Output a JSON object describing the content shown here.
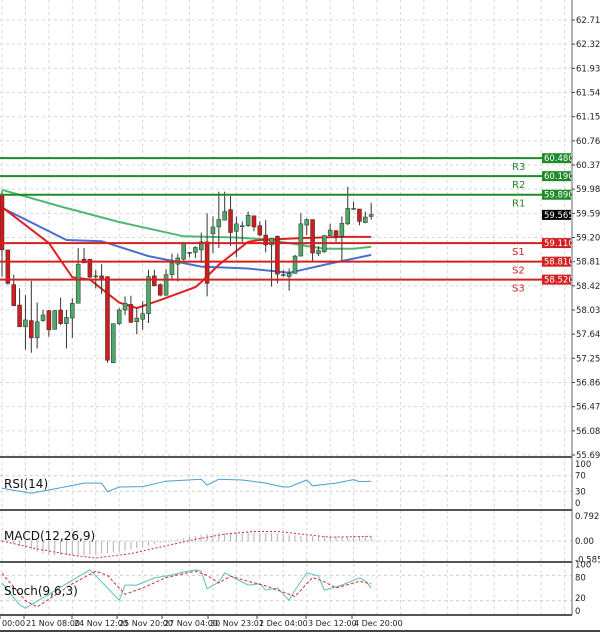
{
  "chart_data": [
    {
      "type": "candlestick",
      "panel": "price",
      "y_ticks": [
        "62.710",
        "62.320",
        "61.930",
        "61.540",
        "61.150",
        "60.760",
        "60.370",
        "59.980",
        "59.590",
        "59.200",
        "58.810",
        "58.420",
        "58.030",
        "57.640",
        "57.250",
        "56.860",
        "56.470",
        "56.080",
        "55.690"
      ],
      "ylim": [
        55.69,
        62.71
      ],
      "x_ticks": [
        "00:00",
        "21 Nov 08:00",
        "24 Nov 12:00",
        "25 Nov 20:00",
        "27 Nov 04:00",
        "30 Nov 23:01",
        "2 Dec 04:00",
        "3 Dec 12:00",
        "4 Dec 20:00"
      ],
      "grid": true,
      "colors": {
        "up": "#4da86a",
        "down": "#d01c1c",
        "outline": "#2a2a2a"
      },
      "last_price": "59.565",
      "candles": [
        [
          59.89,
          59.95,
          58.57,
          59.0
        ],
        [
          59.0,
          59.0,
          58.44,
          58.46
        ],
        [
          58.44,
          58.6,
          58.09,
          58.1
        ],
        [
          58.11,
          58.38,
          57.76,
          57.76
        ],
        [
          57.76,
          58.27,
          57.39,
          57.87
        ],
        [
          57.86,
          58.5,
          57.34,
          57.58
        ],
        [
          57.58,
          58.15,
          57.41,
          57.84
        ],
        [
          57.86,
          58.03,
          57.84,
          57.95
        ],
        [
          58.02,
          58.03,
          57.6,
          57.71
        ],
        [
          57.72,
          58.03,
          57.71,
          58.02
        ],
        [
          58.03,
          58.23,
          57.79,
          57.81
        ],
        [
          57.81,
          58.03,
          57.41,
          57.91
        ],
        [
          57.9,
          58.22,
          57.58,
          58.14
        ],
        [
          58.14,
          59.03,
          58.14,
          58.77
        ],
        [
          58.85,
          59.03,
          58.79,
          58.79
        ],
        [
          58.85,
          58.85,
          58.54,
          58.56
        ],
        [
          58.57,
          58.68,
          58.38,
          58.58
        ],
        [
          58.58,
          58.77,
          58.29,
          58.54
        ],
        [
          58.57,
          58.57,
          57.18,
          57.22
        ],
        [
          57.18,
          57.81,
          57.17,
          57.81
        ],
        [
          57.81,
          58.06,
          57.79,
          58.03
        ],
        [
          58.03,
          58.25,
          57.95,
          58.14
        ],
        [
          58.12,
          58.26,
          57.82,
          57.83
        ],
        [
          57.84,
          58.06,
          57.64,
          57.9
        ],
        [
          57.88,
          58.17,
          57.71,
          57.97
        ],
        [
          57.97,
          58.68,
          57.82,
          58.57
        ],
        [
          58.58,
          58.68,
          58.41,
          58.42
        ],
        [
          58.44,
          58.46,
          58.25,
          58.27
        ],
        [
          58.27,
          58.69,
          58.26,
          58.6
        ],
        [
          58.6,
          58.94,
          58.52,
          58.79
        ],
        [
          58.77,
          58.94,
          58.49,
          58.87
        ],
        [
          58.85,
          59.13,
          58.83,
          59.1
        ],
        [
          58.96,
          58.97,
          58.88,
          58.96
        ],
        [
          58.96,
          59.06,
          58.87,
          59.04
        ],
        [
          59.0,
          59.28,
          58.79,
          59.13
        ],
        [
          59.13,
          59.59,
          58.25,
          58.46
        ],
        [
          59.26,
          59.54,
          58.95,
          59.37
        ],
        [
          59.37,
          59.94,
          59.03,
          59.49
        ],
        [
          59.48,
          59.94,
          59.48,
          59.62
        ],
        [
          59.65,
          59.87,
          59.06,
          59.28
        ],
        [
          59.3,
          59.54,
          58.88,
          59.42
        ],
        [
          59.39,
          59.46,
          59.13,
          59.39
        ],
        [
          59.39,
          59.62,
          59.37,
          59.56
        ],
        [
          59.55,
          59.55,
          59.3,
          59.37
        ],
        [
          59.39,
          59.46,
          59.22,
          59.24
        ],
        [
          59.24,
          59.48,
          58.96,
          59.08
        ],
        [
          59.08,
          59.19,
          58.41,
          59.19
        ],
        [
          59.22,
          59.23,
          58.46,
          58.61
        ],
        [
          58.6,
          58.68,
          58.57,
          58.6
        ],
        [
          58.57,
          58.7,
          58.34,
          58.62
        ],
        [
          58.62,
          58.92,
          58.62,
          58.9
        ],
        [
          58.9,
          59.59,
          58.9,
          59.42
        ],
        [
          59.4,
          59.51,
          59.24,
          59.49
        ],
        [
          59.49,
          59.49,
          58.81,
          58.95
        ],
        [
          58.94,
          59.06,
          58.9,
          58.99
        ],
        [
          58.97,
          59.24,
          58.95,
          59.23
        ],
        [
          59.23,
          59.42,
          59.22,
          59.32
        ],
        [
          59.31,
          59.32,
          59.13,
          59.2
        ],
        [
          59.22,
          59.54,
          58.81,
          59.43
        ],
        [
          59.42,
          60.02,
          59.4,
          59.67
        ],
        [
          59.67,
          59.78,
          59.65,
          59.67
        ],
        [
          59.66,
          59.66,
          59.4,
          59.46
        ],
        [
          59.44,
          59.62,
          59.43,
          59.53
        ],
        [
          59.54,
          59.76,
          59.49,
          59.57
        ]
      ],
      "moving_averages": [
        {
          "color": "#4fb878",
          "points": [
            [
              0,
              59.97
            ],
            [
              10,
              59.7
            ],
            [
              20,
              59.45
            ],
            [
              31,
              59.22
            ],
            [
              40,
              59.2
            ],
            [
              45,
              59.17
            ],
            [
              55,
              59.02
            ],
            [
              60,
              59.02
            ],
            [
              63,
              59.05
            ]
          ]
        },
        {
          "color": "#4a6fd0",
          "points": [
            [
              0,
              59.68
            ],
            [
              11,
              59.16
            ],
            [
              17,
              59.14
            ],
            [
              25,
              58.9
            ],
            [
              34,
              58.73
            ],
            [
              42,
              58.7
            ],
            [
              49,
              58.63
            ],
            [
              56,
              58.78
            ],
            [
              63,
              58.92
            ]
          ]
        },
        {
          "color": "#e02020",
          "points": [
            [
              0,
              59.69
            ],
            [
              8,
              59.11
            ],
            [
              12,
              58.56
            ],
            [
              15,
              58.52
            ],
            [
              20,
              58.15
            ],
            [
              23,
              58.06
            ],
            [
              27,
              58.19
            ],
            [
              33,
              58.4
            ],
            [
              34,
              58.48
            ],
            [
              37,
              58.76
            ],
            [
              42,
              59.13
            ],
            [
              44,
              59.16
            ],
            [
              51,
              59.19
            ],
            [
              58,
              59.21
            ],
            [
              63,
              59.21
            ]
          ]
        }
      ],
      "levels": [
        {
          "name": "R3",
          "value": "60.480",
          "color": "#1e8a2a"
        },
        {
          "name": "R2",
          "value": "60.190",
          "color": "#1e8a2a"
        },
        {
          "name": "R1",
          "value": "59.890",
          "color": "#1e8a2a"
        },
        {
          "name": "S1",
          "value": "59.110",
          "color": "#d42020"
        },
        {
          "name": "S2",
          "value": "58.810",
          "color": "#d42020"
        },
        {
          "name": "S3",
          "value": "58.520",
          "color": "#d42020"
        }
      ]
    },
    {
      "type": "line",
      "title": "RSI(14)",
      "y_ticks": [
        "100",
        "70",
        "30",
        "0"
      ],
      "ylim": [
        0,
        100
      ],
      "levels": [
        70,
        30
      ],
      "color": "#4a9fd0",
      "points": [
        [
          0,
          38
        ],
        [
          5,
          25
        ],
        [
          11,
          42
        ],
        [
          14,
          51
        ],
        [
          17,
          51
        ],
        [
          18,
          29
        ],
        [
          20,
          41
        ],
        [
          24,
          42
        ],
        [
          28,
          56
        ],
        [
          34,
          61
        ],
        [
          35,
          46
        ],
        [
          37,
          61
        ],
        [
          41,
          59
        ],
        [
          45,
          51
        ],
        [
          48,
          41
        ],
        [
          49,
          41
        ],
        [
          52,
          59
        ],
        [
          53,
          44
        ],
        [
          57,
          51
        ],
        [
          60,
          60
        ],
        [
          61,
          55
        ],
        [
          63,
          56
        ]
      ]
    },
    {
      "type": "bar",
      "title": "MACD(12,26,9)",
      "y_ticks": [
        "0.7927",
        "0.00",
        "-0.5859"
      ],
      "ylim": [
        -0.5859,
        0.7927
      ],
      "histogram_color": "#b0b0b0",
      "signal_color": "#d03030",
      "histogram": [
        [
          0,
          0.05
        ],
        [
          3,
          -0.15
        ],
        [
          8,
          -0.45
        ],
        [
          14,
          -0.45
        ],
        [
          20,
          -0.35
        ],
        [
          26,
          -0.1
        ],
        [
          29,
          0.02
        ],
        [
          34,
          0.2
        ],
        [
          40,
          0.28
        ],
        [
          46,
          0.25
        ],
        [
          52,
          0.15
        ],
        [
          63,
          0.15
        ]
      ],
      "signal": [
        [
          0,
          0
        ],
        [
          6,
          -0.25
        ],
        [
          12,
          -0.45
        ],
        [
          16,
          -0.54
        ],
        [
          22,
          -0.4
        ],
        [
          28,
          -0.15
        ],
        [
          33,
          0.05
        ],
        [
          38,
          0.22
        ],
        [
          43,
          0.3
        ],
        [
          47,
          0.3
        ],
        [
          52,
          0.2
        ],
        [
          56,
          0.12
        ],
        [
          63,
          0.15
        ]
      ]
    },
    {
      "type": "line",
      "title": "Stoch(9,6,3)",
      "y_ticks": [
        "100",
        "80",
        "20",
        "0"
      ],
      "ylim": [
        0,
        100
      ],
      "levels": [
        80,
        20
      ],
      "main_color": "#5cc0b8",
      "signal_color": "#d03030",
      "main": [
        [
          0,
          62
        ],
        [
          3,
          10
        ],
        [
          4,
          2
        ],
        [
          15,
          93
        ],
        [
          16,
          79
        ],
        [
          20,
          21
        ],
        [
          21,
          57
        ],
        [
          23,
          57
        ],
        [
          26,
          74
        ],
        [
          29,
          81
        ],
        [
          31,
          88
        ],
        [
          33,
          93
        ],
        [
          34,
          90
        ],
        [
          35,
          48
        ],
        [
          37,
          64
        ],
        [
          38,
          86
        ],
        [
          42,
          57
        ],
        [
          44,
          60
        ],
        [
          45,
          45
        ],
        [
          47,
          50
        ],
        [
          49,
          21
        ],
        [
          50,
          45
        ],
        [
          52,
          86
        ],
        [
          54,
          79
        ],
        [
          55,
          45
        ],
        [
          58,
          57
        ],
        [
          61,
          74
        ],
        [
          62,
          67
        ],
        [
          63,
          50
        ]
      ],
      "signal": [
        [
          0,
          85
        ],
        [
          4,
          20
        ],
        [
          6,
          5
        ],
        [
          12,
          60
        ],
        [
          16,
          90
        ],
        [
          18,
          80
        ],
        [
          21,
          35
        ],
        [
          24,
          50
        ],
        [
          28,
          75
        ],
        [
          33,
          90
        ],
        [
          35,
          80
        ],
        [
          37,
          62
        ],
        [
          39,
          78
        ],
        [
          42,
          66
        ],
        [
          45,
          55
        ],
        [
          48,
          40
        ],
        [
          50,
          30
        ],
        [
          53,
          75
        ],
        [
          55,
          65
        ],
        [
          57,
          50
        ],
        [
          61,
          66
        ],
        [
          63,
          60
        ]
      ]
    }
  ]
}
